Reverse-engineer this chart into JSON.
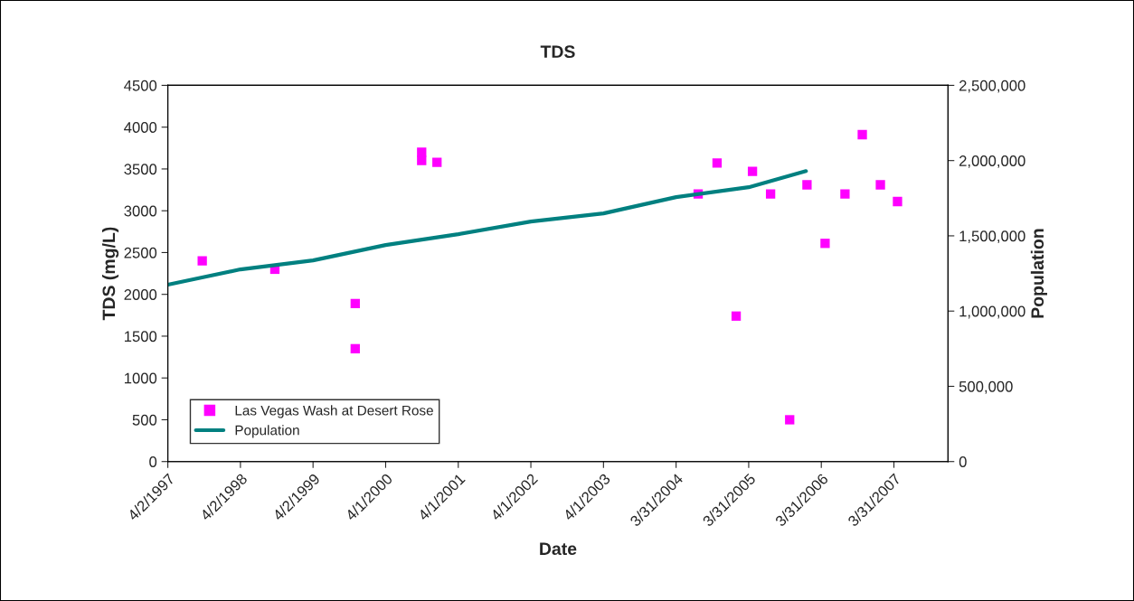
{
  "chart_data": {
    "type": "scatter",
    "title": "TDS",
    "xlabel": "Date",
    "ylabel": "TDS (mg/L)",
    "y2label": "Population",
    "xlim": [
      "1997-04-02",
      "2007-12-28"
    ],
    "xticks": [
      {
        "value": "1997-04-02",
        "label": "4/2/1997"
      },
      {
        "value": "1998-04-02",
        "label": "4/2/1998"
      },
      {
        "value": "1999-04-02",
        "label": "4/2/1999"
      },
      {
        "value": "2000-04-01",
        "label": "4/1/2000"
      },
      {
        "value": "2001-04-01",
        "label": "4/1/2001"
      },
      {
        "value": "2002-04-01",
        "label": "4/1/2002"
      },
      {
        "value": "2003-04-01",
        "label": "4/1/2003"
      },
      {
        "value": "2004-03-31",
        "label": "3/31/2004"
      },
      {
        "value": "2005-03-31",
        "label": "3/31/2005"
      },
      {
        "value": "2006-03-31",
        "label": "3/31/2006"
      },
      {
        "value": "2007-03-31",
        "label": "3/31/2007"
      }
    ],
    "ylim": [
      0,
      4500
    ],
    "yticks": [
      0,
      500,
      1000,
      1500,
      2000,
      2500,
      3000,
      3500,
      4000,
      4500
    ],
    "y2lim": [
      0,
      2500000
    ],
    "y2ticks": [
      {
        "value": 0,
        "label": "0"
      },
      {
        "value": 500000,
        "label": "500,000"
      },
      {
        "value": 1000000,
        "label": "1,000,000"
      },
      {
        "value": 1500000,
        "label": "1,500,000"
      },
      {
        "value": 2000000,
        "label": "2,000,000"
      },
      {
        "value": 2500000,
        "label": "2,500,000"
      }
    ],
    "grid": false,
    "legend": "bottom left",
    "series": [
      {
        "name": "Las Vegas Wash at Desert Rose",
        "color": "#ff00ff",
        "marker": "square",
        "x": [
          "1997-09-22",
          "1998-09-22",
          "1999-10-31",
          "1999-10-31",
          "2000-09-29",
          "2000-09-29",
          "2000-12-15",
          "2004-07-20",
          "2004-10-23",
          "2005-01-27",
          "2005-04-19",
          "2005-07-19",
          "2005-10-23",
          "2006-01-18",
          "2006-04-19",
          "2006-07-28",
          "2006-10-23",
          "2007-01-22",
          "2007-04-18"
        ],
        "values": [
          2400,
          2300,
          1890,
          1350,
          3700,
          3600,
          3580,
          3200,
          3570,
          1740,
          3470,
          3200,
          500,
          3310,
          2610,
          3200,
          3910,
          3310,
          3110
        ]
      },
      {
        "name": "Population",
        "type": "line",
        "axis": "y2",
        "color": "#008080",
        "marker": "none",
        "line_style": "solid",
        "x": [
          "1997-04-02",
          "1998-04-02",
          "1999-04-02",
          "2000-04-01",
          "2001-04-01",
          "2002-04-01",
          "2003-04-01",
          "2004-03-31",
          "2005-03-31",
          "2006-01-13"
        ],
        "values": [
          1175000,
          1277000,
          1337000,
          1439000,
          1511000,
          1595000,
          1649000,
          1757000,
          1823000,
          1930000
        ]
      }
    ]
  }
}
